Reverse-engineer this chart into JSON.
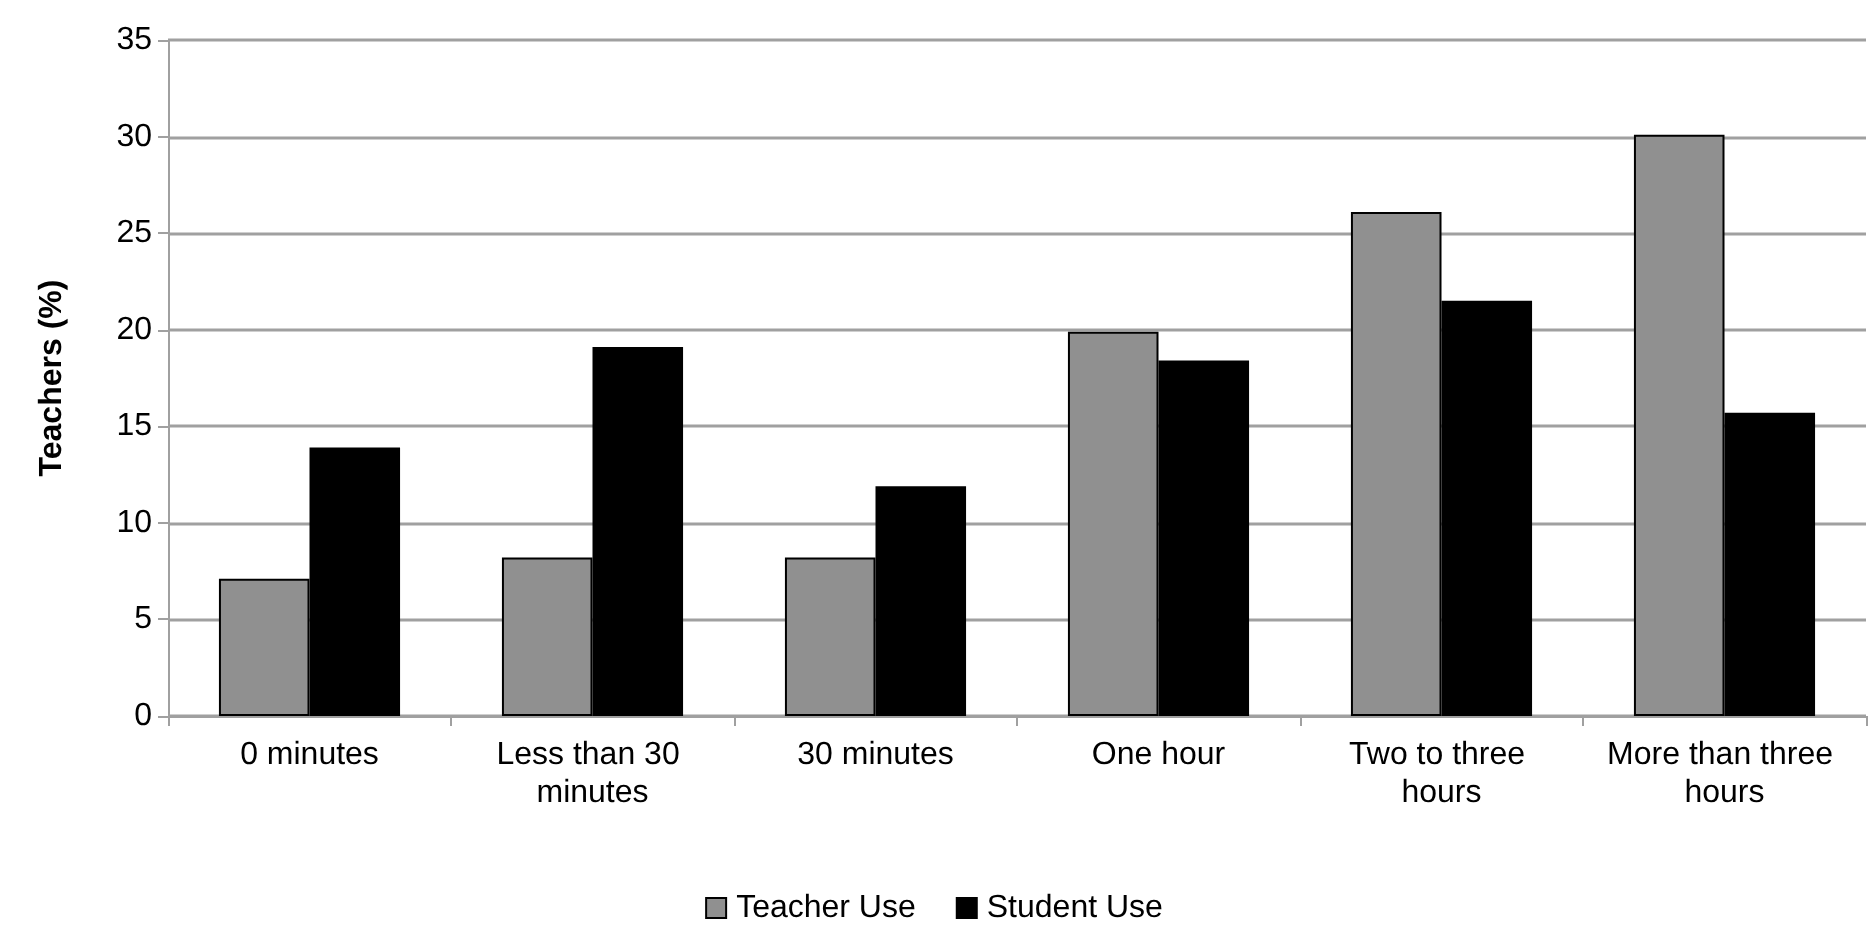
{
  "chart_data": {
    "type": "bar",
    "ylabel": "Teachers (%)",
    "categories": [
      "0 minutes",
      "Less than 30 minutes",
      "30 minutes",
      "One hour",
      "Two to three hours",
      "More than three hours"
    ],
    "series": [
      {
        "name": "Teacher Use",
        "color": "#909090",
        "values": [
          7.1,
          8.2,
          8.2,
          19.9,
          26.1,
          30.1
        ]
      },
      {
        "name": "Student Use",
        "color": "#000000",
        "values": [
          13.9,
          19.1,
          11.9,
          18.4,
          21.5,
          15.7
        ]
      }
    ],
    "ylim": [
      0,
      35
    ],
    "yticks": [
      0,
      5,
      10,
      15,
      20,
      25,
      30,
      35
    ],
    "grid": "y",
    "legend": "bottom"
  }
}
